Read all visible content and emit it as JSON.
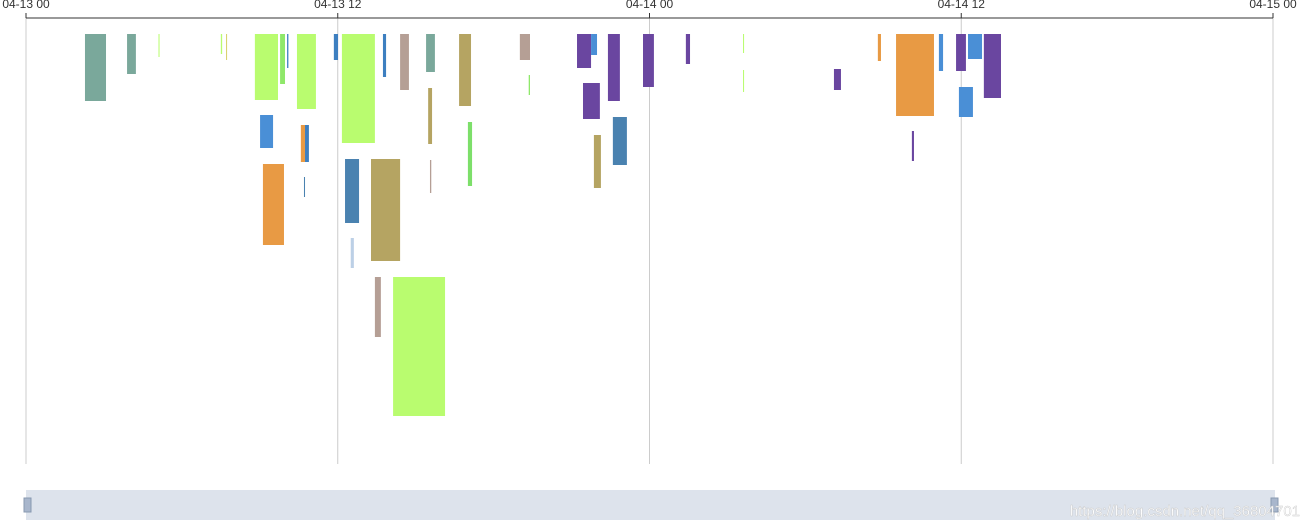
{
  "chart_data": {
    "type": "timeline",
    "xlim": [
      0,
      48
    ],
    "xticks": [
      {
        "value": 0,
        "label": "04-13 00"
      },
      {
        "value": 12,
        "label": "04-13 12"
      },
      {
        "value": 24,
        "label": "04-14 00"
      },
      {
        "value": 36,
        "label": "04-14 12"
      },
      {
        "value": 48,
        "label": "04-15 00"
      }
    ],
    "ylim": [
      0,
      446
    ],
    "grid": true,
    "watermark": "https://blog.csdn.net/qq_36804701",
    "bars": [
      {
        "start": 2.27,
        "end": 3.08,
        "top": 16,
        "bottom": 83,
        "color": "#7aa89b"
      },
      {
        "start": 3.89,
        "end": 4.23,
        "top": 16,
        "bottom": 56,
        "color": "#7aa89b"
      },
      {
        "start": 5.1,
        "end": 5.14,
        "top": 16,
        "bottom": 39,
        "color": "#b9fc6f"
      },
      {
        "start": 7.5,
        "end": 7.55,
        "top": 16,
        "bottom": 36,
        "color": "#b9fc6f"
      },
      {
        "start": 7.7,
        "end": 7.74,
        "top": 16,
        "bottom": 42,
        "color": "#d8d06a"
      },
      {
        "start": 8.81,
        "end": 9.7,
        "top": 16,
        "bottom": 82,
        "color": "#b9fc6f"
      },
      {
        "start": 9.78,
        "end": 9.97,
        "top": 16,
        "bottom": 66,
        "color": "#8fe86a"
      },
      {
        "start": 10.05,
        "end": 10.1,
        "top": 16,
        "bottom": 50,
        "color": "#3d7fc0"
      },
      {
        "start": 10.43,
        "end": 11.16,
        "top": 16,
        "bottom": 91,
        "color": "#b9fc6f"
      },
      {
        "start": 11.85,
        "end": 12.01,
        "top": 16,
        "bottom": 42,
        "color": "#3d7fc0"
      },
      {
        "start": 9.01,
        "end": 9.51,
        "top": 97,
        "bottom": 130,
        "color": "#4a8fd6"
      },
      {
        "start": 10.58,
        "end": 10.74,
        "top": 107,
        "bottom": 144,
        "color": "#e89a44"
      },
      {
        "start": 10.74,
        "end": 10.89,
        "top": 107,
        "bottom": 144,
        "color": "#3d7fc0"
      },
      {
        "start": 10.7,
        "end": 10.74,
        "top": 159,
        "bottom": 179,
        "color": "#4a82b0"
      },
      {
        "start": 9.12,
        "end": 9.93,
        "top": 146,
        "bottom": 227,
        "color": "#e89a44"
      },
      {
        "start": 12.16,
        "end": 13.43,
        "top": 16,
        "bottom": 125,
        "color": "#b9fc6f"
      },
      {
        "start": 12.28,
        "end": 12.82,
        "top": 141,
        "bottom": 205,
        "color": "#4a82b0"
      },
      {
        "start": 12.5,
        "end": 12.62,
        "top": 220,
        "bottom": 250,
        "color": "#bcd0e6"
      },
      {
        "start": 13.28,
        "end": 14.4,
        "top": 141,
        "bottom": 243,
        "color": "#b5a462"
      },
      {
        "start": 13.43,
        "end": 13.66,
        "top": 259,
        "bottom": 319,
        "color": "#b59f95"
      },
      {
        "start": 14.13,
        "end": 16.13,
        "top": 259,
        "bottom": 398,
        "color": "#b9fc6f"
      },
      {
        "start": 13.74,
        "end": 13.86,
        "top": 16,
        "bottom": 59,
        "color": "#3d7fc0"
      },
      {
        "start": 14.4,
        "end": 14.74,
        "top": 16,
        "bottom": 72,
        "color": "#b59f95"
      },
      {
        "start": 15.4,
        "end": 15.74,
        "top": 16,
        "bottom": 54,
        "color": "#7aa89b"
      },
      {
        "start": 15.48,
        "end": 15.63,
        "top": 70,
        "bottom": 126,
        "color": "#b5a462"
      },
      {
        "start": 15.55,
        "end": 15.6,
        "top": 142,
        "bottom": 175,
        "color": "#b59f95"
      },
      {
        "start": 16.67,
        "end": 17.13,
        "top": 16,
        "bottom": 88,
        "color": "#b5a462"
      },
      {
        "start": 17.01,
        "end": 17.17,
        "top": 104,
        "bottom": 168,
        "color": "#7ddf6a"
      },
      {
        "start": 19.01,
        "end": 19.4,
        "top": 16,
        "bottom": 42,
        "color": "#b59f95"
      },
      {
        "start": 19.35,
        "end": 19.4,
        "top": 57,
        "bottom": 77,
        "color": "#8fe86a"
      },
      {
        "start": 21.21,
        "end": 21.75,
        "top": 16,
        "bottom": 50,
        "color": "#6a46a0"
      },
      {
        "start": 21.75,
        "end": 21.98,
        "top": 16,
        "bottom": 37,
        "color": "#4a8fd6"
      },
      {
        "start": 21.44,
        "end": 22.09,
        "top": 65,
        "bottom": 101,
        "color": "#6a46a0"
      },
      {
        "start": 22.4,
        "end": 22.86,
        "top": 16,
        "bottom": 83,
        "color": "#6a46a0"
      },
      {
        "start": 21.86,
        "end": 22.13,
        "top": 117,
        "bottom": 170,
        "color": "#b5a462"
      },
      {
        "start": 22.59,
        "end": 23.13,
        "top": 99,
        "bottom": 147,
        "color": "#4a82b0"
      },
      {
        "start": 23.75,
        "end": 24.17,
        "top": 16,
        "bottom": 69,
        "color": "#6a46a0"
      },
      {
        "start": 25.4,
        "end": 25.56,
        "top": 16,
        "bottom": 46,
        "color": "#6a46a0"
      },
      {
        "start": 27.6,
        "end": 27.64,
        "top": 16,
        "bottom": 35,
        "color": "#b9fc6f"
      },
      {
        "start": 27.6,
        "end": 27.64,
        "top": 52,
        "bottom": 74,
        "color": "#b9fc6f"
      },
      {
        "start": 31.1,
        "end": 31.37,
        "top": 51,
        "bottom": 72,
        "color": "#6a46a0"
      },
      {
        "start": 32.79,
        "end": 32.91,
        "top": 16,
        "bottom": 43,
        "color": "#e89a44"
      },
      {
        "start": 33.49,
        "end": 34.95,
        "top": 16,
        "bottom": 98,
        "color": "#e89a44"
      },
      {
        "start": 34.1,
        "end": 34.18,
        "top": 113,
        "bottom": 143,
        "color": "#6a46a0"
      },
      {
        "start": 35.14,
        "end": 35.3,
        "top": 16,
        "bottom": 53,
        "color": "#4a8fd6"
      },
      {
        "start": 35.8,
        "end": 36.18,
        "top": 16,
        "bottom": 53,
        "color": "#6a46a0"
      },
      {
        "start": 36.26,
        "end": 36.8,
        "top": 16,
        "bottom": 41,
        "color": "#4a8fd6"
      },
      {
        "start": 36.87,
        "end": 37.53,
        "top": 16,
        "bottom": 80,
        "color": "#6a46a0"
      },
      {
        "start": 35.91,
        "end": 36.45,
        "top": 69,
        "bottom": 99,
        "color": "#4a8fd6"
      }
    ]
  }
}
